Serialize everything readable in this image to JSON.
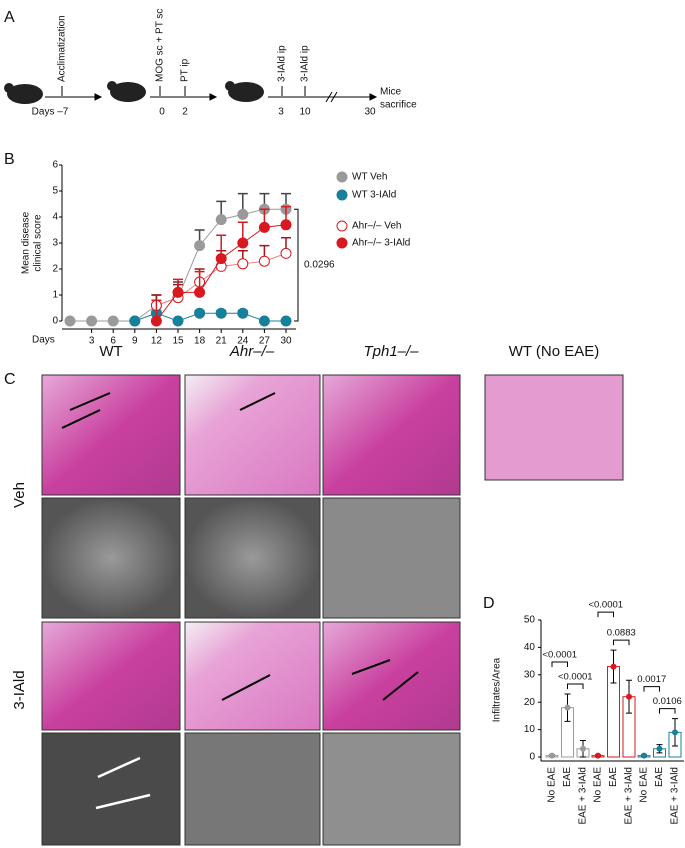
{
  "panel_a": {
    "label": "A",
    "events": [
      "Acclimatization",
      "MOG sc + PT sc",
      "PT ip",
      "3-IAld ip",
      "3-IAld ip"
    ],
    "days": [
      "Days –7",
      "0",
      "2",
      "3",
      "10",
      "30"
    ],
    "end": [
      "Mice",
      "sacrifice"
    ]
  },
  "chart_data": [
    {
      "type": "line",
      "panel_label": "B",
      "y_label": [
        "Mean disease",
        "clinical score"
      ],
      "x_label": "Days",
      "x": [
        0,
        3,
        6,
        9,
        12,
        15,
        18,
        21,
        24,
        27,
        30
      ],
      "xlim": [
        0,
        30
      ],
      "xticks": [
        3,
        6,
        9,
        12,
        15,
        18,
        21,
        24,
        27,
        30
      ],
      "ylim": [
        0,
        6
      ],
      "yticks": [
        0,
        1,
        2,
        3,
        4,
        5,
        6
      ],
      "series": [
        {
          "name": "WT Veh",
          "color": "#9a9a9a",
          "marker": "filled",
          "values": [
            0,
            0,
            0,
            0,
            0.6,
            0.9,
            2.9,
            3.9,
            4.1,
            4.3,
            4.3
          ],
          "errors": [
            0,
            0,
            0,
            0,
            0.4,
            0.6,
            0.6,
            0.7,
            0.8,
            0.6,
            0.6
          ]
        },
        {
          "name": "WT 3-IAld",
          "color": "#17809a",
          "marker": "filled",
          "values": [
            null,
            null,
            null,
            0,
            0.3,
            0,
            0.3,
            0.3,
            0.3,
            0,
            0
          ],
          "errors": [
            null,
            null,
            null,
            0,
            0.1,
            0,
            0.1,
            0.1,
            0.1,
            0,
            0
          ]
        },
        {
          "name": "Ahr–/– Veh",
          "color": "#d71920",
          "marker": "open",
          "values": [
            null,
            null,
            null,
            null,
            0.6,
            0.9,
            1.5,
            2.1,
            2.2,
            2.3,
            2.6
          ],
          "errors": [
            null,
            null,
            null,
            null,
            0.4,
            0.5,
            0.5,
            0.6,
            0.5,
            0.6,
            0.6
          ]
        },
        {
          "name": "Ahr–/– 3-IAld",
          "color": "#d71920",
          "marker": "filled",
          "values": [
            null,
            null,
            null,
            null,
            0,
            1.1,
            1.1,
            2.4,
            3.0,
            3.6,
            3.7
          ],
          "errors": [
            null,
            null,
            null,
            null,
            0.8,
            0.5,
            0.8,
            0.9,
            0.8,
            0.7,
            0.7
          ]
        }
      ],
      "annotation": "0.0296"
    },
    {
      "type": "bar",
      "panel_label": "D",
      "y_label": "Infiltrates/Area",
      "categories": [
        "No EAE",
        "EAE",
        "EAE + 3-IAld"
      ],
      "ylim": [
        0,
        50
      ],
      "yticks": [
        0,
        10,
        20,
        30,
        40,
        50
      ],
      "series": [
        {
          "color": "#9a9a9a",
          "values": [
            0.5,
            18,
            3
          ],
          "errors": [
            0.3,
            5,
            3
          ],
          "comparisons": [
            "<0.0001",
            "<0.0001"
          ]
        },
        {
          "color": "#d71920",
          "values": [
            0.5,
            33,
            22
          ],
          "errors": [
            0.3,
            6,
            6
          ],
          "comparisons": [
            "<0.0001",
            "0.0883"
          ]
        },
        {
          "color": "#17809a",
          "values": [
            0.5,
            3,
            9
          ],
          "errors": [
            0.3,
            1.5,
            5
          ],
          "comparisons": [
            "0.0017",
            "0.0106"
          ]
        }
      ]
    }
  ],
  "panel_c": {
    "label": "C",
    "columns": [
      "WT",
      "Ahr–/–",
      "Tph1–/–",
      "WT (No EAE)"
    ],
    "rows": [
      "Veh",
      "3-IAld"
    ]
  }
}
